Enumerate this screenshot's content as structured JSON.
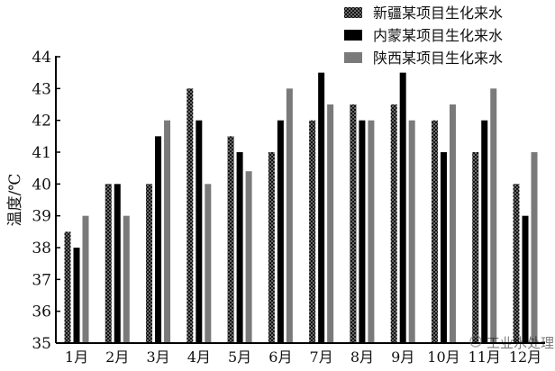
{
  "chart_data": {
    "type": "bar",
    "title": "",
    "xlabel": "",
    "ylabel": "温度/℃",
    "ylim": [
      35,
      44
    ],
    "yticks": [
      35,
      36,
      37,
      38,
      39,
      40,
      41,
      42,
      43,
      44
    ],
    "categories": [
      "1月",
      "2月",
      "3月",
      "4月",
      "5月",
      "6月",
      "7月",
      "8月",
      "9月",
      "10月",
      "11月",
      "12月"
    ],
    "grid": false,
    "legend_position": "top-right",
    "series": [
      {
        "name": "新疆某项目生化来水",
        "pattern": "crosshatch",
        "color": "#222222",
        "values": [
          38.5,
          40,
          40,
          43,
          41.5,
          41,
          42,
          42.5,
          42.5,
          42,
          41,
          40
        ]
      },
      {
        "name": "内蒙某项目生化来水",
        "pattern": "solid",
        "color": "#000000",
        "values": [
          38,
          40,
          41.5,
          42,
          41,
          42,
          43.5,
          42,
          43.5,
          41,
          42,
          39
        ]
      },
      {
        "name": "陕西某项目生化来水",
        "pattern": "solid",
        "color": "#7a7a7a",
        "values": [
          39,
          39,
          42,
          40,
          40.4,
          43,
          42.5,
          42,
          42,
          42.5,
          43,
          41
        ]
      }
    ],
    "watermark": "工业水处理"
  }
}
